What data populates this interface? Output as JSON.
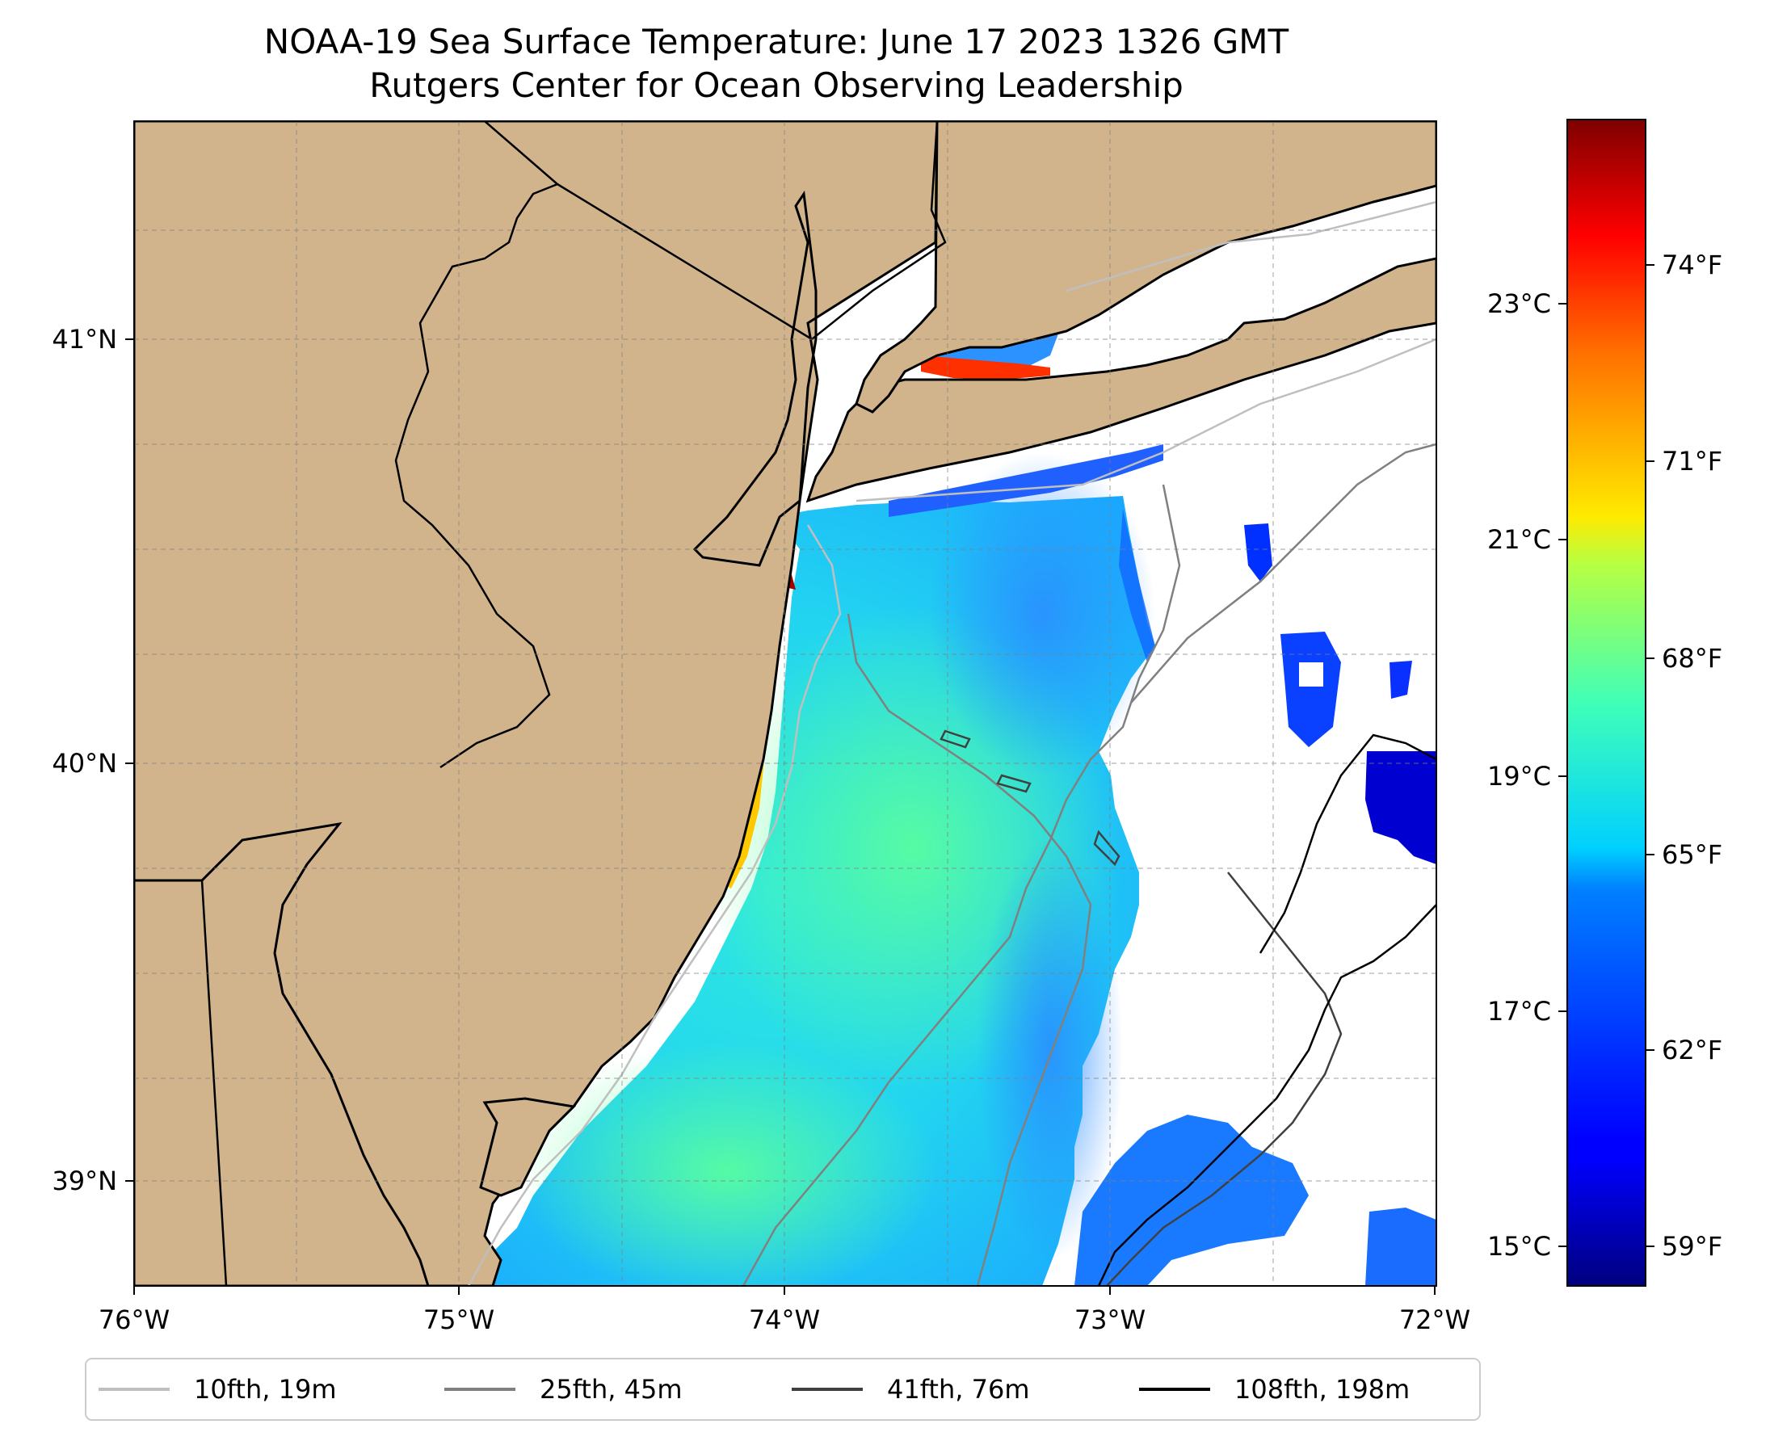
{
  "title": {
    "line1": "NOAA-19 Sea Surface Temperature: June 17 2023 1326 GMT",
    "line2": "Rutgers Center for Ocean Observing Leadership"
  },
  "map": {
    "lon_ticks": [
      "76°W",
      "75°W",
      "74°W",
      "73°W",
      "72°W"
    ],
    "lat_ticks": [
      "41°N",
      "40°N",
      "39°N"
    ],
    "extent": {
      "lon_min": -76,
      "lon_max": -72,
      "lat_min": 38.75,
      "lat_max": 41.5
    },
    "land_color": "#d2b48c",
    "grid": true
  },
  "colorbar": {
    "colormap": "jet",
    "range_c": [
      14.75,
      24.7
    ],
    "celsius_ticks": [
      "15°C",
      "17°C",
      "19°C",
      "21°C",
      "23°C"
    ],
    "fahrenheit_ticks": [
      "59°F",
      "62°F",
      "65°F",
      "68°F",
      "71°F",
      "74°F"
    ]
  },
  "legend": {
    "items": [
      {
        "label": "10fth, 19m",
        "color": "#bfbfbf"
      },
      {
        "label": "25fth, 45m",
        "color": "#808080"
      },
      {
        "label": "41fth, 76m",
        "color": "#404040"
      },
      {
        "label": "108fth, 198m",
        "color": "#000000"
      }
    ]
  }
}
